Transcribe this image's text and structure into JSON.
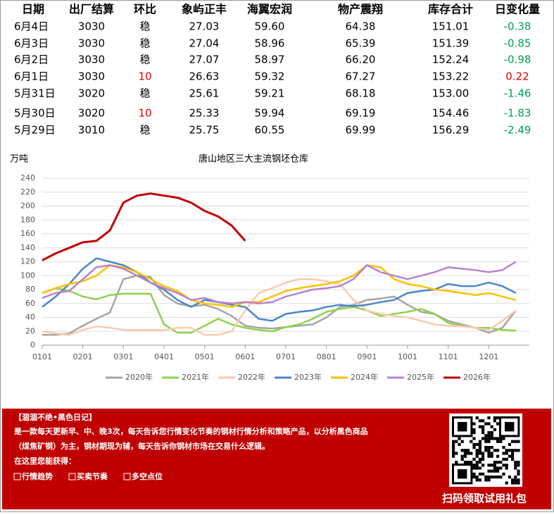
{
  "table": {
    "headers": [
      "日期",
      "出厂结算",
      "环比",
      "象屿正丰",
      "海翼宏润",
      "物产震翔",
      "库存合计",
      "日变化量"
    ],
    "rows": [
      [
        "6月4日",
        "3030",
        "稳",
        "27.03",
        "59.60",
        "64.38",
        "151.01",
        "-0.38"
      ],
      [
        "6月3日",
        "3030",
        "稳",
        "27.04",
        "58.96",
        "65.39",
        "151.39",
        "-0.85"
      ],
      [
        "6月2日",
        "3030",
        "稳",
        "27.07",
        "58.97",
        "66.20",
        "152.24",
        "-0.98"
      ],
      [
        "6月1日",
        "3030",
        "10",
        "26.63",
        "59.32",
        "67.27",
        "153.22",
        "0.22"
      ],
      [
        "5月31日",
        "3020",
        "稳",
        "25.61",
        "59.21",
        "68.18",
        "153.00",
        "-1.46"
      ],
      [
        "5月30日",
        "3020",
        "10",
        "25.33",
        "59.94",
        "69.19",
        "154.46",
        "-1.83"
      ],
      [
        "5月29日",
        "3010",
        "稳",
        "25.75",
        "60.55",
        "69.99",
        "156.29",
        "-2.49"
      ]
    ]
  },
  "chart_data": {
    "type": "line",
    "title": "唐山地区三大主流钢坯仓库",
    "y_label": "万吨",
    "categories": [
      "0101",
      null,
      null,
      "0201",
      null,
      null,
      "0301",
      null,
      null,
      "0401",
      null,
      null,
      "0501",
      null,
      null,
      "0601",
      null,
      null,
      "0701",
      null,
      null,
      "0801",
      null,
      null,
      "0901",
      null,
      null,
      "1001",
      null,
      null,
      "1101",
      null,
      null,
      "1201",
      null,
      null
    ],
    "ylim": [
      0,
      240
    ],
    "yticks": [
      0,
      20,
      40,
      60,
      80,
      100,
      120,
      140,
      160,
      180,
      200,
      220,
      240
    ],
    "grid": true,
    "legend": "bottom",
    "series": [
      {
        "name": "2020年",
        "color": "#a5a5a5",
        "values": [
          15,
          15,
          17,
          28,
          38,
          47,
          95,
          100,
          98,
          72,
          60,
          56,
          58,
          52,
          42,
          28,
          25,
          24,
          26,
          28,
          30,
          40,
          55,
          58,
          65,
          67,
          70,
          58,
          48,
          45,
          35,
          30,
          25,
          18,
          25,
          50
        ]
      },
      {
        "name": "2021年",
        "color": "#8fd14f",
        "values": [
          75,
          82,
          78,
          70,
          66,
          72,
          74,
          74,
          74,
          30,
          18,
          18,
          28,
          38,
          30,
          25,
          22,
          20,
          26,
          30,
          38,
          48,
          52,
          55,
          50,
          42,
          45,
          48,
          52,
          45,
          32,
          28,
          25,
          25,
          22,
          21
        ]
      },
      {
        "name": "2022年",
        "color": "#f8cbad",
        "values": [
          20,
          17,
          15,
          22,
          27,
          25,
          22,
          22,
          22,
          22,
          25,
          25,
          15,
          15,
          20,
          50,
          75,
          82,
          90,
          95,
          95,
          92,
          88,
          65,
          50,
          45,
          42,
          40,
          35,
          30,
          28,
          27,
          25,
          22,
          35,
          50
        ]
      },
      {
        "name": "2023年",
        "color": "#4a86c8",
        "values": [
          55,
          70,
          88,
          110,
          125,
          120,
          115,
          105,
          90,
          80,
          65,
          55,
          65,
          62,
          58,
          55,
          38,
          35,
          45,
          48,
          50,
          55,
          58,
          56,
          58,
          62,
          65,
          75,
          78,
          80,
          88,
          85,
          85,
          90,
          85,
          75
        ]
      },
      {
        "name": "2024年",
        "color": "#ffc000",
        "values": [
          75,
          82,
          88,
          92,
          100,
          115,
          112,
          105,
          95,
          85,
          78,
          65,
          60,
          58,
          55,
          62,
          62,
          70,
          78,
          82,
          85,
          88,
          92,
          100,
          115,
          112,
          95,
          88,
          85,
          80,
          78,
          75,
          72,
          75,
          70,
          65
        ]
      },
      {
        "name": "2025年",
        "color": "#b883cc",
        "values": [
          68,
          75,
          78,
          95,
          112,
          115,
          110,
          100,
          90,
          82,
          75,
          65,
          68,
          62,
          60,
          62,
          60,
          62,
          70,
          75,
          80,
          82,
          85,
          95,
          115,
          105,
          100,
          95,
          100,
          105,
          112,
          110,
          108,
          105,
          108,
          120
        ]
      },
      {
        "name": "2026年",
        "color": "#c00000",
        "values": [
          122,
          132,
          140,
          148,
          150,
          165,
          205,
          215,
          218,
          215,
          212,
          205,
          193,
          185,
          172,
          150,
          null,
          null,
          null,
          null,
          null,
          null,
          null,
          null,
          null,
          null,
          null,
          null,
          null,
          null,
          null,
          null,
          null,
          null,
          null,
          null
        ]
      }
    ]
  },
  "footer": {
    "heading": "【涸涸不绝•黑色日记】",
    "lines": [
      "是一款每天更新早、中、晚3次，每天告诉您行情变化节奏的钢材行情分析和策略产品，以分析黑色商品",
      "（煤焦矿钢）为主，钢材期现为辅，每天告诉你钢材市场在交易什么逻辑。",
      "在这里您能获得："
    ],
    "links": [
      "行情趋势",
      "买卖节奏",
      "多空点位"
    ],
    "qr_caption": "扫码领取试用礼包"
  }
}
